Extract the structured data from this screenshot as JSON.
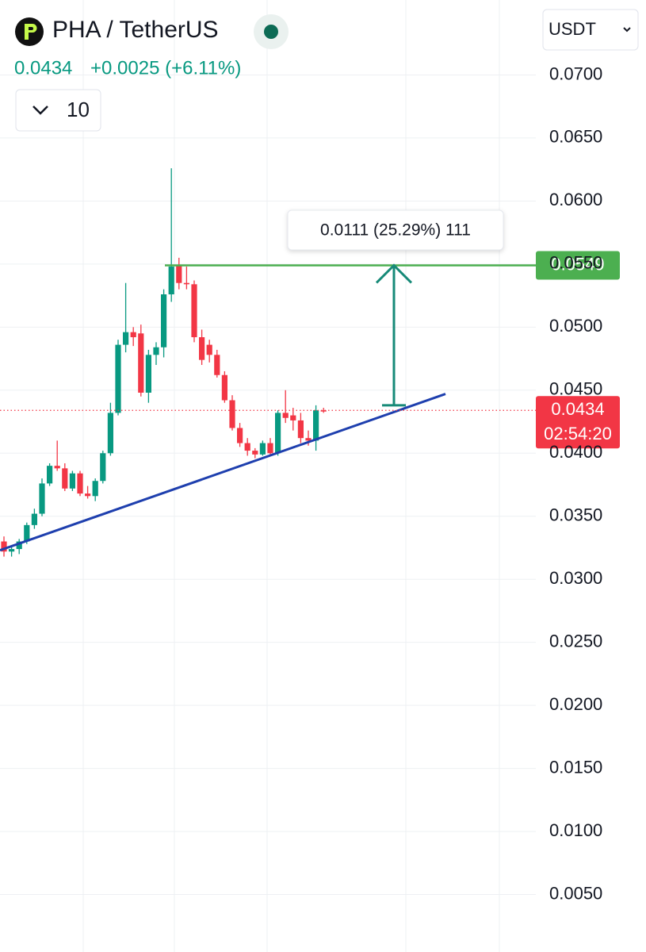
{
  "chart_data": {
    "type": "candlestick",
    "symbol": "PHA / TetherUS",
    "last_price": 0.0434,
    "change_label": "+0.0025 (+6.11%)",
    "interval_label": "10",
    "currency": "USDT",
    "countdown": "02:54:20",
    "up_color": "#089981",
    "down_color": "#f23645",
    "ylim": [
      0,
      0.075
    ],
    "yticks": [
      {
        "value": 0.07,
        "label": "0.0700"
      },
      {
        "value": 0.065,
        "label": "0.0650"
      },
      {
        "value": 0.06,
        "label": "0.0600"
      },
      {
        "value": 0.055,
        "label": "0.0550"
      },
      {
        "value": 0.05,
        "label": "0.0500"
      },
      {
        "value": 0.045,
        "label": "0.0450"
      },
      {
        "value": 0.04,
        "label": "0.0400"
      },
      {
        "value": 0.035,
        "label": "0.0350"
      },
      {
        "value": 0.03,
        "label": "0.0300"
      },
      {
        "value": 0.025,
        "label": "0.0250"
      },
      {
        "value": 0.02,
        "label": "0.0200"
      },
      {
        "value": 0.015,
        "label": "0.0150"
      },
      {
        "value": 0.01,
        "label": "0.0100"
      },
      {
        "value": 0.005,
        "label": "0.0050"
      }
    ],
    "grid": true,
    "open": [
      0.033,
      0.0322,
      0.0324,
      0.033,
      0.0343,
      0.0352,
      0.0376,
      0.039,
      0.0388,
      0.0372,
      0.0384,
      0.0368,
      0.0366,
      0.0378,
      0.04,
      0.0432,
      0.0486,
      0.0496,
      0.0495,
      0.0448,
      0.0478,
      0.0484,
      0.0526,
      0.0549,
      0.0535,
      0.0534,
      0.0492,
      0.0486,
      0.0478,
      0.0462,
      0.0442,
      0.042,
      0.0408,
      0.0402,
      0.0399,
      0.0408,
      0.04,
      0.0432,
      0.043,
      0.0426,
      0.0412,
      0.041,
      0.0434
    ],
    "high": [
      0.0334,
      0.0326,
      0.0332,
      0.0345,
      0.0356,
      0.038,
      0.0392,
      0.041,
      0.0392,
      0.0386,
      0.0386,
      0.0374,
      0.038,
      0.0402,
      0.044,
      0.049,
      0.0535,
      0.05,
      0.0502,
      0.0482,
      0.0488,
      0.053,
      0.0626,
      0.0555,
      0.0548,
      0.0537,
      0.0498,
      0.049,
      0.0482,
      0.0465,
      0.0446,
      0.0424,
      0.0412,
      0.0404,
      0.041,
      0.0412,
      0.0434,
      0.045,
      0.0436,
      0.0432,
      0.0418,
      0.0438,
      0.0436
    ],
    "low": [
      0.0318,
      0.0318,
      0.032,
      0.0328,
      0.034,
      0.035,
      0.0374,
      0.0386,
      0.037,
      0.037,
      0.0366,
      0.0364,
      0.0362,
      0.0376,
      0.0398,
      0.043,
      0.048,
      0.0485,
      0.0445,
      0.044,
      0.047,
      0.0476,
      0.052,
      0.053,
      0.053,
      0.0488,
      0.047,
      0.0472,
      0.046,
      0.044,
      0.0418,
      0.0405,
      0.0398,
      0.0396,
      0.0398,
      0.0398,
      0.0398,
      0.0424,
      0.0418,
      0.0408,
      0.0406,
      0.0402,
      0.0432
    ],
    "close": [
      0.0322,
      0.0324,
      0.033,
      0.0343,
      0.0352,
      0.0376,
      0.039,
      0.0388,
      0.0372,
      0.0384,
      0.0368,
      0.0366,
      0.0378,
      0.04,
      0.0432,
      0.0486,
      0.0496,
      0.0492,
      0.0448,
      0.0478,
      0.0484,
      0.0526,
      0.0548,
      0.0535,
      0.0534,
      0.0492,
      0.0474,
      0.0478,
      0.0462,
      0.0442,
      0.042,
      0.0408,
      0.0402,
      0.0399,
      0.0408,
      0.04,
      0.0432,
      0.0428,
      0.0426,
      0.0412,
      0.041,
      0.0434,
      0.0434
    ],
    "level": {
      "value": 0.0549,
      "color": "#4caf50"
    },
    "trendline": {
      "start": 0.0323,
      "end": 0.0447,
      "color": "#1e3fae"
    },
    "measure": {
      "from": 0.0438,
      "to": 0.0549,
      "label": "0.0111 (25.29%) 111",
      "color": "#178a78"
    }
  }
}
